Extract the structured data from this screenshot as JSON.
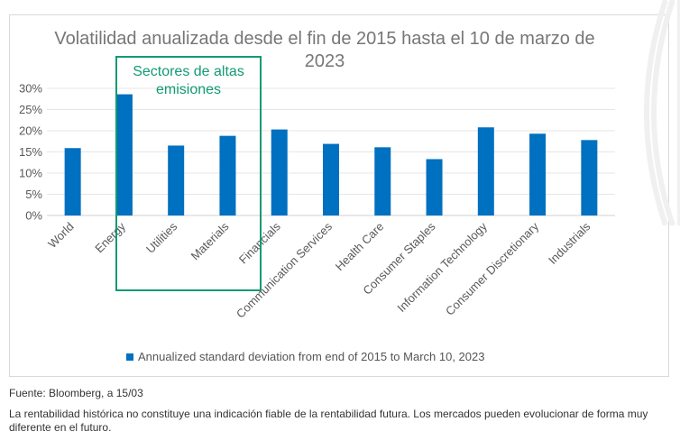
{
  "chart_data": {
    "type": "bar",
    "title": "Volatilidad anualizada desde el fin de 2015 hasta el 10 de marzo de 2023",
    "categories": [
      "World",
      "Energy",
      "Utilities",
      "Materials",
      "Financials",
      "Communication Services",
      "Health Care",
      "Consumer Staples",
      "Information Technology",
      "Consumer Discretionary",
      "Industrials"
    ],
    "series": [
      {
        "name": "Annualized standard deviation from end of 2015 to March 10, 2023",
        "values": [
          15.9,
          28.6,
          16.5,
          18.8,
          20.3,
          16.9,
          16.1,
          13.3,
          20.8,
          19.3,
          17.8
        ]
      }
    ],
    "ylim": [
      0,
      30
    ],
    "yticks": [
      "0%",
      "5%",
      "10%",
      "15%",
      "20%",
      "25%",
      "30%"
    ],
    "xlabel": "",
    "ylabel": "",
    "grid": true,
    "legend_position": "bottom",
    "bar_color": "#0070c0",
    "annotation": {
      "label": "Sectores de altas emisiones",
      "color": "#119a73",
      "categories": [
        "Energy",
        "Utilities",
        "Materials"
      ]
    }
  },
  "source_note": "Fuente: Bloomberg, a 15/03",
  "disclaimer": "La rentabilidad histórica no constituye una indicación fiable de la rentabilidad futura. Los mercados pueden evolucionar de forma muy diferente en el futuro."
}
